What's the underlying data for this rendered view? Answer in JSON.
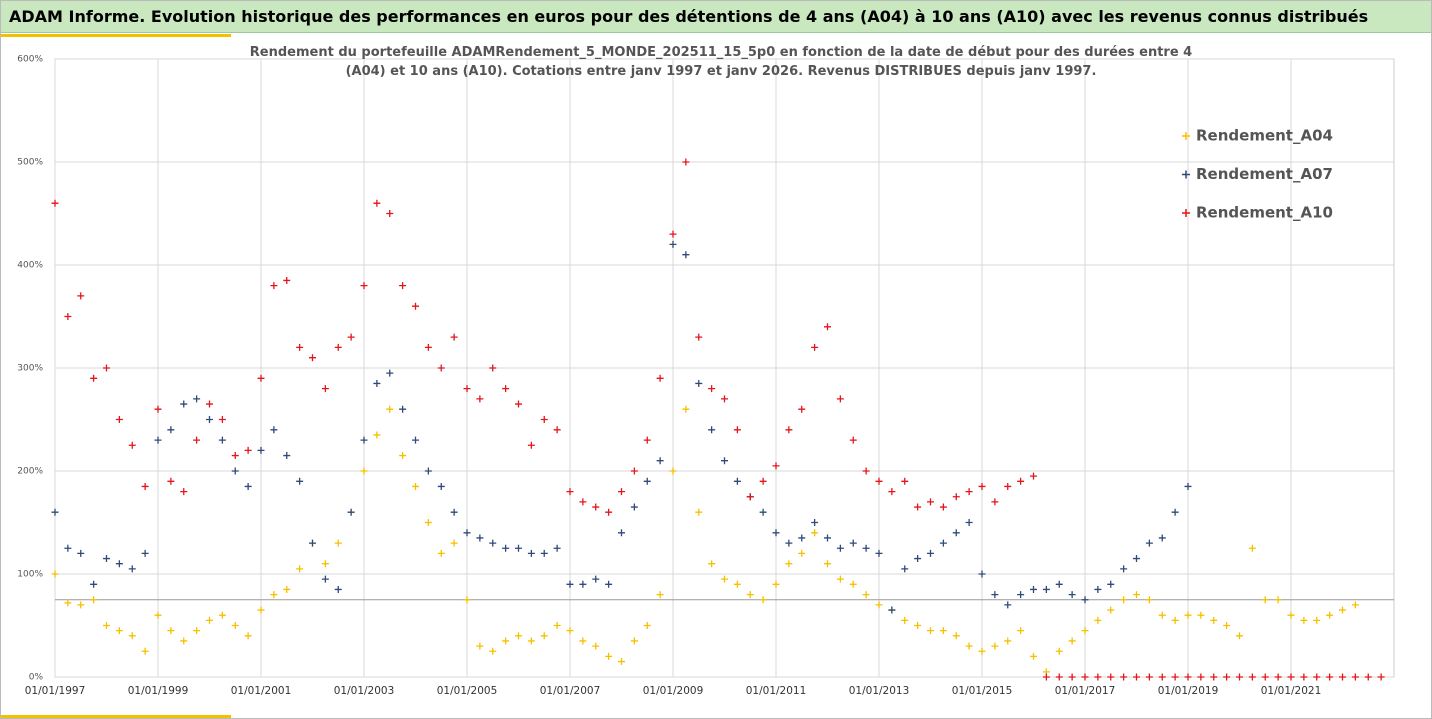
{
  "chart_data": {
    "type": "scatter",
    "title": "ADAM Informe. Evolution historique des performances en euros pour des détentions de 4 ans (A04) à 10 ans (A10) avec les revenus connus distribués",
    "subtitle": "Rendement du portefeuille ADAMRendement_5_MONDE_202511_15_5p0 en fonction de la date de début pour des durées entre 4 (A04) et 10 ans (A10). Cotations entre janv 1997 et janv 2026. Revenus DISTRIBUES depuis janv 1997.",
    "xlim": [
      1997,
      2023
    ],
    "ylim": [
      0,
      600
    ],
    "xticks": [
      {
        "value": 1997,
        "label": "01/01/1997"
      },
      {
        "value": 1999,
        "label": "01/01/1999"
      },
      {
        "value": 2001,
        "label": "01/01/2001"
      },
      {
        "value": 2003,
        "label": "01/01/2003"
      },
      {
        "value": 2005,
        "label": "01/01/2005"
      },
      {
        "value": 2007,
        "label": "01/01/2007"
      },
      {
        "value": 2009,
        "label": "01/01/2009"
      },
      {
        "value": 2011,
        "label": "01/01/2011"
      },
      {
        "value": 2013,
        "label": "01/01/2013"
      },
      {
        "value": 2015,
        "label": "01/01/2015"
      },
      {
        "value": 2017,
        "label": "01/01/2017"
      },
      {
        "value": 2019,
        "label": "01/01/2019"
      },
      {
        "value": 2021,
        "label": "01/01/2021"
      }
    ],
    "yticks": [
      {
        "value": 0,
        "label": "0%"
      },
      {
        "value": 100,
        "label": "100%"
      },
      {
        "value": 200,
        "label": "200%"
      },
      {
        "value": 300,
        "label": "300%"
      },
      {
        "value": 400,
        "label": "400%"
      },
      {
        "value": 500,
        "label": "500%"
      },
      {
        "value": 600,
        "label": "600%"
      }
    ],
    "grid": true,
    "hline": 75,
    "legend": "upper right",
    "marker": "+",
    "series": [
      {
        "name": "Rendement_A04",
        "color": "#f5c000",
        "x": [
          1997,
          1997.25,
          1997.5,
          1997.75,
          1998,
          1998.25,
          1998.5,
          1998.75,
          1999,
          1999.25,
          1999.5,
          1999.75,
          2000,
          2000.25,
          2000.5,
          2000.75,
          2001,
          2001.25,
          2001.5,
          2001.75,
          2002,
          2002.25,
          2002.5,
          2002.75,
          2003,
          2003.25,
          2003.5,
          2003.75,
          2004,
          2004.25,
          2004.5,
          2004.75,
          2005,
          2005.25,
          2005.5,
          2005.75,
          2006,
          2006.25,
          2006.5,
          2006.75,
          2007,
          2007.25,
          2007.5,
          2007.75,
          2008,
          2008.25,
          2008.5,
          2008.75,
          2009,
          2009.25,
          2009.5,
          2009.75,
          2010,
          2010.25,
          2010.5,
          2010.75,
          2011,
          2011.25,
          2011.5,
          2011.75,
          2012,
          2012.25,
          2012.5,
          2012.75,
          2013,
          2013.25,
          2013.5,
          2013.75,
          2014,
          2014.25,
          2014.5,
          2014.75,
          2015,
          2015.25,
          2015.5,
          2015.75,
          2016,
          2016.25,
          2016.5,
          2016.75,
          2017,
          2017.25,
          2017.5,
          2017.75,
          2018,
          2018.25,
          2018.5,
          2018.75,
          2019,
          2019.25,
          2019.5,
          2019.75,
          2020,
          2020.25,
          2020.5,
          2020.75,
          2021,
          2021.25,
          2021.5,
          2021.75,
          2022,
          2022.25
        ],
        "values": [
          100,
          72,
          70,
          75,
          50,
          45,
          40,
          25,
          60,
          45,
          35,
          45,
          55,
          60,
          50,
          40,
          65,
          80,
          85,
          105,
          130,
          110,
          130,
          160,
          200,
          235,
          260,
          215,
          185,
          150,
          120,
          130,
          75,
          30,
          25,
          35,
          40,
          35,
          40,
          50,
          45,
          35,
          30,
          20,
          15,
          35,
          50,
          80,
          200,
          260,
          160,
          110,
          95,
          90,
          80,
          75,
          90,
          110,
          120,
          140,
          110,
          95,
          90,
          80,
          70,
          65,
          55,
          50,
          45,
          45,
          40,
          30,
          25,
          30,
          35,
          45,
          20,
          5,
          25,
          35,
          45,
          55,
          65,
          75,
          80,
          75,
          60,
          55,
          60,
          60,
          55,
          50,
          40,
          125,
          75,
          75,
          60,
          55,
          55,
          60,
          65,
          70
        ]
      },
      {
        "name": "Rendement_A07",
        "color": "#2f4a7a",
        "x": [
          1997,
          1997.25,
          1997.5,
          1997.75,
          1998,
          1998.25,
          1998.5,
          1998.75,
          1999,
          1999.25,
          1999.5,
          1999.75,
          2000,
          2000.25,
          2000.5,
          2000.75,
          2001,
          2001.25,
          2001.5,
          2001.75,
          2002,
          2002.25,
          2002.5,
          2002.75,
          2003,
          2003.25,
          2003.5,
          2003.75,
          2004,
          2004.25,
          2004.5,
          2004.75,
          2005,
          2005.25,
          2005.5,
          2005.75,
          2006,
          2006.25,
          2006.5,
          2006.75,
          2007,
          2007.25,
          2007.5,
          2007.75,
          2008,
          2008.25,
          2008.5,
          2008.75,
          2009,
          2009.25,
          2009.5,
          2009.75,
          2010,
          2010.25,
          2010.5,
          2010.75,
          2011,
          2011.25,
          2011.5,
          2011.75,
          2012,
          2012.25,
          2012.5,
          2012.75,
          2013,
          2013.25,
          2013.5,
          2013.75,
          2014,
          2014.25,
          2014.5,
          2014.75,
          2015,
          2015.25,
          2015.5,
          2015.75,
          2016,
          2016.25,
          2016.5,
          2016.75,
          2017,
          2017.25,
          2017.5,
          2017.75,
          2018,
          2018.25,
          2018.5,
          2018.75,
          2019
        ],
        "values": [
          160,
          125,
          120,
          90,
          115,
          110,
          105,
          120,
          230,
          240,
          265,
          270,
          250,
          230,
          200,
          185,
          220,
          240,
          215,
          190,
          130,
          95,
          85,
          160,
          230,
          285,
          295,
          260,
          230,
          200,
          185,
          160,
          140,
          135,
          130,
          125,
          125,
          120,
          120,
          125,
          90,
          90,
          95,
          90,
          140,
          165,
          190,
          210,
          420,
          410,
          285,
          240,
          210,
          190,
          175,
          160,
          140,
          130,
          135,
          150,
          135,
          125,
          130,
          125,
          120,
          65,
          105,
          115,
          120,
          130,
          140,
          150,
          100,
          80,
          70,
          80,
          85,
          85,
          90,
          80,
          75,
          85,
          90,
          105,
          115,
          130,
          135,
          160,
          185
        ]
      },
      {
        "name": "Rendement_A10",
        "color": "#e3161b",
        "x": [
          1997,
          1997.25,
          1997.5,
          1997.75,
          1998,
          1998.25,
          1998.5,
          1998.75,
          1999,
          1999.25,
          1999.5,
          1999.75,
          2000,
          2000.25,
          2000.5,
          2000.75,
          2001,
          2001.25,
          2001.5,
          2001.75,
          2002,
          2002.25,
          2002.5,
          2002.75,
          2003,
          2003.25,
          2003.5,
          2003.75,
          2004,
          2004.25,
          2004.5,
          2004.75,
          2005,
          2005.25,
          2005.5,
          2005.75,
          2006,
          2006.25,
          2006.5,
          2006.75,
          2007,
          2007.25,
          2007.5,
          2007.75,
          2008,
          2008.25,
          2008.5,
          2008.75,
          2009,
          2009.25,
          2009.5,
          2009.75,
          2010,
          2010.25,
          2010.5,
          2010.75,
          2011,
          2011.25,
          2011.5,
          2011.75,
          2012,
          2012.25,
          2012.5,
          2012.75,
          2013,
          2013.25,
          2013.5,
          2013.75,
          2014,
          2014.25,
          2014.5,
          2014.75,
          2015,
          2015.25,
          2015.5,
          2015.75,
          2016,
          2016.25,
          2016.5,
          2016.75,
          2017,
          2017.25,
          2017.5,
          2017.75,
          2018,
          2018.25,
          2018.5,
          2018.75,
          2019,
          2019.25,
          2019.5,
          2019.75,
          2020,
          2020.25,
          2020.5,
          2020.75,
          2021,
          2021.25,
          2021.5,
          2021.75,
          2022,
          2022.25,
          2022.5,
          2022.75
        ],
        "values": [
          460,
          350,
          370,
          290,
          300,
          250,
          225,
          185,
          260,
          190,
          180,
          230,
          265,
          250,
          215,
          220,
          290,
          380,
          385,
          320,
          310,
          280,
          320,
          330,
          380,
          460,
          450,
          380,
          360,
          320,
          300,
          330,
          280,
          270,
          300,
          280,
          265,
          225,
          250,
          240,
          180,
          170,
          165,
          160,
          180,
          200,
          230,
          290,
          430,
          500,
          330,
          280,
          270,
          240,
          175,
          190,
          205,
          240,
          260,
          320,
          340,
          270,
          230,
          200,
          190,
          180,
          190,
          165,
          170,
          165,
          175,
          180,
          185,
          170,
          185,
          190,
          195,
          0,
          0,
          0,
          0,
          0,
          0,
          0,
          0,
          0,
          0,
          0,
          0,
          0,
          0,
          0,
          0,
          0,
          0,
          0,
          0,
          0,
          0,
          0,
          0,
          0,
          0,
          0
        ]
      }
    ]
  }
}
